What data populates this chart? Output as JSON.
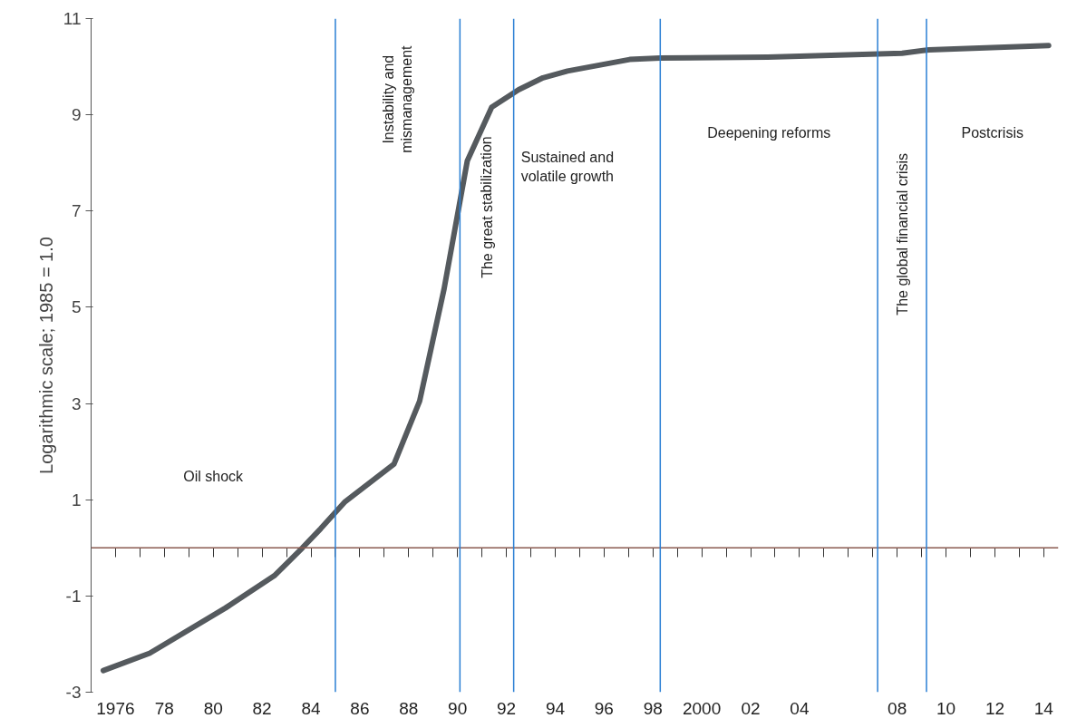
{
  "chart_data": {
    "type": "line",
    "ylabel": "Logarithmic scale; 1985 = 1.0",
    "x": [
      1975.5,
      1977.4,
      1980.5,
      1982.5,
      1983.65,
      1984.4,
      1985.4,
      1987.4,
      1988.45,
      1989.45,
      1990.4,
      1991.4,
      1992.5,
      1993.5,
      1994.5,
      1997.05,
      1998.3,
      2002.7,
      2008.2,
      2009.3,
      2014.2
    ],
    "series": [
      {
        "color": "#555a5e",
        "values": [
          -2.55,
          -2.19,
          -1.25,
          -0.58,
          0.0,
          0.4,
          0.96,
          1.74,
          3.05,
          5.38,
          8.04,
          9.16,
          9.52,
          9.77,
          9.91,
          10.15,
          10.18,
          10.2,
          10.28,
          10.35,
          10.44
        ]
      }
    ],
    "xlim": [
      1975,
      2014.6
    ],
    "ylim": [
      -3,
      11
    ],
    "xticks": [
      {
        "value": 1976,
        "label": "1976"
      },
      {
        "value": 1977,
        "label": null
      },
      {
        "value": 1978,
        "label": "78"
      },
      {
        "value": 1979,
        "label": null
      },
      {
        "value": 1980,
        "label": "80"
      },
      {
        "value": 1981,
        "label": null
      },
      {
        "value": 1982,
        "label": "82"
      },
      {
        "value": 1983,
        "label": null
      },
      {
        "value": 1984,
        "label": "84"
      },
      {
        "value": 1985,
        "label": null
      },
      {
        "value": 1986,
        "label": "86"
      },
      {
        "value": 1987,
        "label": null
      },
      {
        "value": 1988,
        "label": "88"
      },
      {
        "value": 1989,
        "label": null
      },
      {
        "value": 1990,
        "label": "90"
      },
      {
        "value": 1991,
        "label": null
      },
      {
        "value": 1992,
        "label": "92"
      },
      {
        "value": 1993,
        "label": null
      },
      {
        "value": 1994,
        "label": "94"
      },
      {
        "value": 1995,
        "label": null
      },
      {
        "value": 1996,
        "label": "96"
      },
      {
        "value": 1997,
        "label": null
      },
      {
        "value": 1998,
        "label": "98"
      },
      {
        "value": 1999,
        "label": null
      },
      {
        "value": 2000,
        "label": "2000"
      },
      {
        "value": 2001,
        "label": null
      },
      {
        "value": 2002,
        "label": "02"
      },
      {
        "value": 2003,
        "label": null
      },
      {
        "value": 2004,
        "label": "04"
      },
      {
        "value": 2005,
        "label": null
      },
      {
        "value": 2006,
        "label": null
      },
      {
        "value": 2007,
        "label": null
      },
      {
        "value": 2008,
        "label": "08"
      },
      {
        "value": 2009,
        "label": null
      },
      {
        "value": 2010,
        "label": "10"
      },
      {
        "value": 2011,
        "label": null
      },
      {
        "value": 2012,
        "label": "12"
      },
      {
        "value": 2013,
        "label": null
      },
      {
        "value": 2014,
        "label": "14"
      }
    ],
    "yticks": [
      -3,
      -1,
      1,
      3,
      5,
      7,
      9,
      11
    ],
    "grid": false,
    "marker": "none",
    "line_style": "solid",
    "ref_lines": [
      {
        "axis": "y",
        "value": 0,
        "color": "#8a5a50"
      },
      {
        "axis": "x",
        "value": 1985,
        "color": "#2a7fd4"
      },
      {
        "axis": "x",
        "value": 1990.1,
        "color": "#2a7fd4"
      },
      {
        "axis": "x",
        "value": 1992.3,
        "color": "#2a7fd4"
      },
      {
        "axis": "x",
        "value": 1998.3,
        "color": "#2a7fd4"
      },
      {
        "axis": "x",
        "value": 2007.2,
        "color": "#2a7fd4"
      },
      {
        "axis": "x",
        "value": 2009.2,
        "color": "#2a7fd4"
      }
    ],
    "annotations": [
      "Oil shock",
      "Instability and\nmismanagement",
      "The great stabilization",
      "Sustained and\nvolatile growth",
      "Deepening reforms",
      "The global financial crisis",
      "Postcrisis"
    ]
  }
}
